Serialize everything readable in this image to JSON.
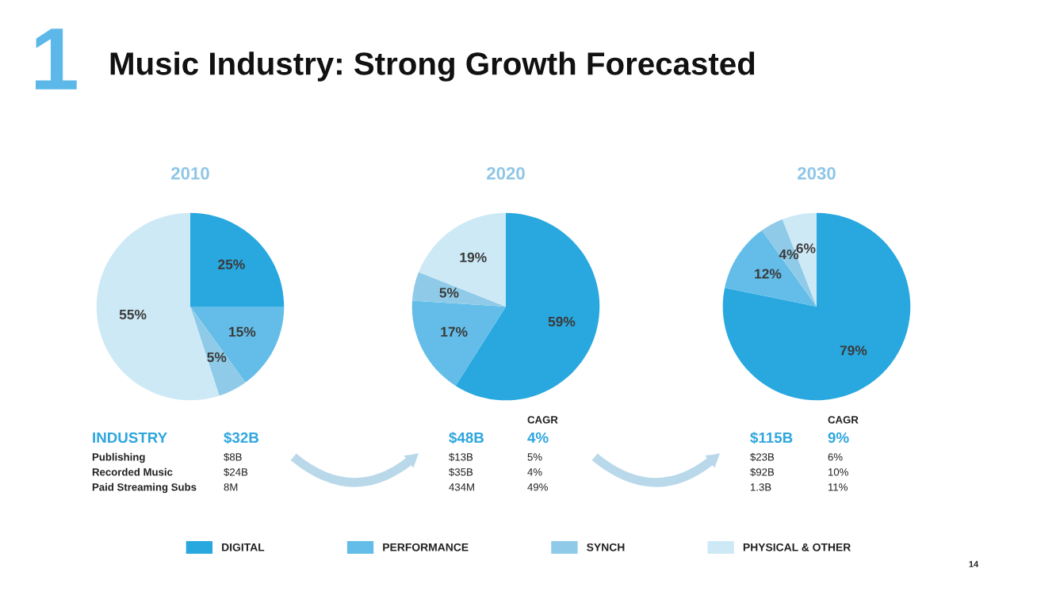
{
  "chart_data": [
    {
      "type": "other",
      "title": "Music Industry: Strong Growth Forecasted",
      "annotations": [
        "1",
        "14"
      ]
    },
    {
      "type": "pie",
      "title": "2010",
      "categories": [
        "DIGITAL",
        "PERFORMANCE",
        "SYNCH",
        "PHYSICAL & OTHER"
      ],
      "values": [
        25,
        15,
        5,
        55
      ],
      "value_labels": [
        "25%",
        "15%",
        "5%",
        "55%"
      ],
      "colors": [
        "#29a8e0",
        "#63bde8",
        "#8fcbe8",
        "#cde9f6"
      ],
      "legend": "bottom",
      "annotations": [
        "INDUSTRY",
        "$32B",
        "Publishing",
        "$8B",
        "Recorded Music",
        "$24B",
        "Paid Streaming Subs",
        "8M"
      ]
    },
    {
      "type": "pie",
      "title": "2020",
      "categories": [
        null,
        null,
        null,
        null
      ],
      "values": [
        59,
        17,
        5,
        19
      ],
      "value_labels": [
        "59%",
        "17%",
        "5%",
        "19%"
      ],
      "colors": [
        "#29a8e0",
        "#63bde8",
        "#8fcbe8",
        "#cde9f6"
      ],
      "annotations": [
        "CAGR",
        "$48B",
        "4%",
        "$13B",
        "5%",
        "$35B",
        "4%",
        "434M",
        "49%"
      ]
    },
    {
      "type": "pie",
      "title": "2030",
      "categories": [
        null,
        null,
        null,
        null
      ],
      "values": [
        79,
        12,
        4,
        6
      ],
      "value_labels": [
        "79%",
        "12%",
        "4%",
        "6%"
      ],
      "colors": [
        "#29a8e0",
        "#63bde8",
        "#8fcbe8",
        "#cde9f6"
      ],
      "annotations": [
        "CAGR",
        "$115B",
        "9%",
        "$23B",
        "6%",
        "$92B",
        "10%",
        "1.3B",
        "11%"
      ]
    }
  ]
}
